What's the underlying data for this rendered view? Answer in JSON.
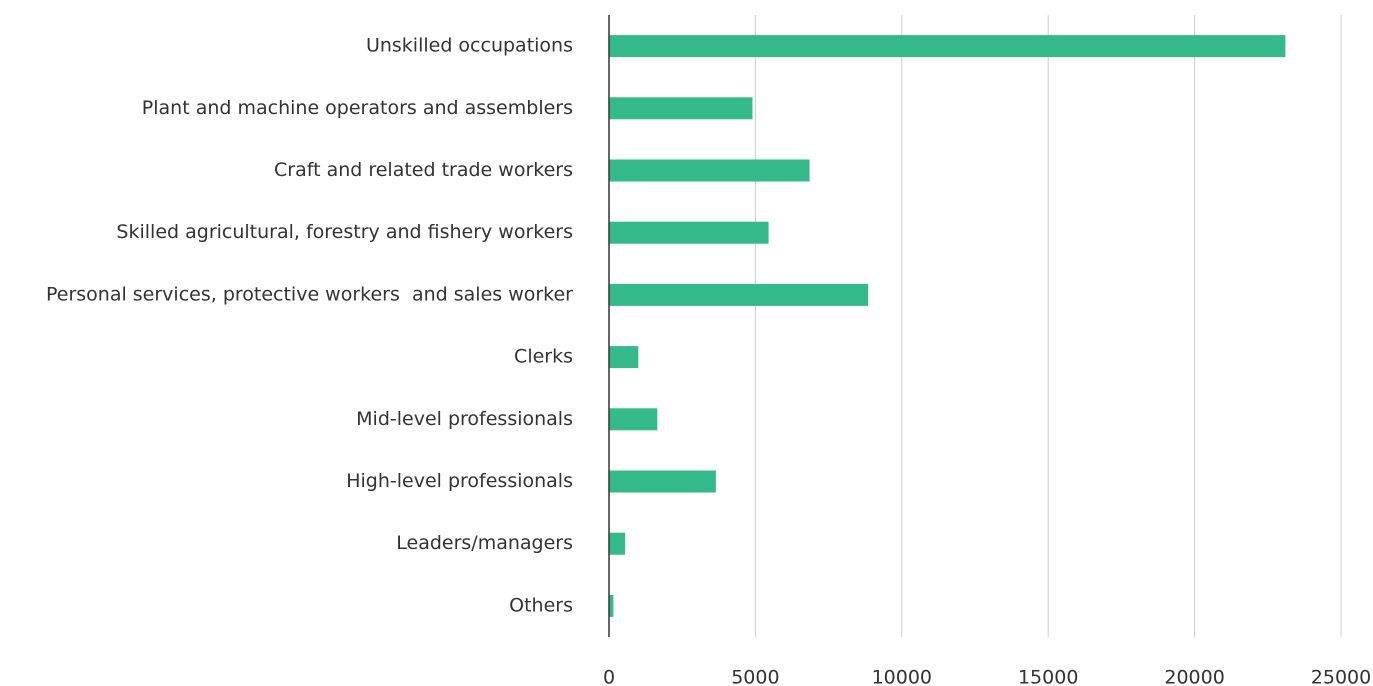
{
  "chart_data": {
    "type": "hbar",
    "categories": [
      "Unskilled occupations",
      "Plant and machine operators and assemblers",
      "Craft and related trade workers",
      "Skilled agricultural, forestry and fishery workers",
      "Personal services, protective workers  and sales worker",
      "Clerks",
      "Mid-level professionals",
      "High-level professionals",
      "Leaders/managers",
      "Others"
    ],
    "values": [
      23100,
      4900,
      6850,
      5450,
      8850,
      1000,
      1650,
      3650,
      550,
      150
    ],
    "color": "#33b98a",
    "xlim": [
      0,
      25000
    ],
    "xticks": [
      0,
      5000,
      10000,
      15000,
      20000,
      25000
    ],
    "grid": true
  }
}
